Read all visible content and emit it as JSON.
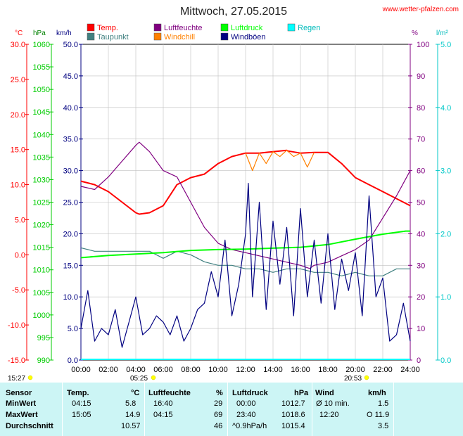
{
  "title": "Mittwoch, 27.05.2015",
  "source": "www.wetter-pfalzen.com",
  "axis_units": {
    "temp": "°C",
    "pressure": "hPa",
    "wind": "km/h",
    "humidity": "%",
    "rain": "l/m²"
  },
  "legend": [
    {
      "label": "Temp.",
      "color": "#ff0000"
    },
    {
      "label": "Taupunkt",
      "color": "#408080"
    },
    {
      "label": "Luftfeuchte",
      "color": "#800080"
    },
    {
      "label": "Windchill",
      "color": "#ff8000"
    },
    {
      "label": "Luftdruck",
      "color": "#00ff00"
    },
    {
      "label": "Windböen",
      "color": "#000080"
    },
    {
      "label": "Regen",
      "color": "#00ffff"
    }
  ],
  "sun": {
    "moonset": "15:27",
    "sunrise": "05:25",
    "sunset": "20:53"
  },
  "chart_data": {
    "type": "line",
    "title": "Mittwoch, 27.05.2015",
    "x_ticks": [
      "00:00",
      "02:00",
      "04:00",
      "06:00",
      "08:00",
      "10:00",
      "12:00",
      "14:00",
      "16:00",
      "18:00",
      "20:00",
      "22:00",
      "24:00"
    ],
    "axes": {
      "temp": {
        "label": "°C",
        "range": [
          -15,
          30
        ],
        "ticks": [
          "30.0",
          "25.0",
          "20.0",
          "15.0",
          "10.0",
          "5.0",
          "0.0",
          "-5.0",
          "-10.0",
          "-15.0"
        ]
      },
      "pressure": {
        "label": "hPa",
        "range": [
          990,
          1060
        ],
        "ticks": [
          "1060",
          "1055",
          "1050",
          "1045",
          "1040",
          "1035",
          "1030",
          "1025",
          "1020",
          "1015",
          "1010",
          "1005",
          "1000",
          "995",
          "990"
        ]
      },
      "wind": {
        "label": "km/h",
        "range": [
          0,
          50
        ],
        "ticks": [
          "50.0",
          "45.0",
          "40.0",
          "35.0",
          "30.0",
          "25.0",
          "20.0",
          "15.0",
          "10.0",
          "5.0",
          "0.0"
        ]
      },
      "humidity": {
        "label": "%",
        "range": [
          0,
          100
        ],
        "ticks": [
          "100",
          "90",
          "80",
          "70",
          "60",
          "50",
          "40",
          "30",
          "20",
          "10",
          "0"
        ]
      },
      "rain": {
        "label": "l/m²",
        "range": [
          0,
          5
        ],
        "ticks": [
          "5.0",
          "4.0",
          "3.0",
          "2.0",
          "1.0",
          "0.0"
        ]
      }
    },
    "series": [
      {
        "name": "Temp.",
        "axis": "temp",
        "color": "#ff0000",
        "x": [
          0,
          1,
          2,
          3,
          4,
          4.25,
          5,
          6,
          7,
          8,
          9,
          10,
          11,
          12,
          13,
          14,
          15,
          15.08,
          16,
          17,
          18,
          19,
          20,
          21,
          22,
          23,
          24
        ],
        "y": [
          10.5,
          10,
          9,
          7.5,
          6,
          5.8,
          6,
          7,
          10,
          11,
          11.5,
          13,
          14,
          14.5,
          14.5,
          14.7,
          14.9,
          14.8,
          14.5,
          14.6,
          14.6,
          13,
          11,
          10,
          9,
          8,
          7
        ]
      },
      {
        "name": "Taupunkt",
        "axis": "temp",
        "color": "#408080",
        "x": [
          0,
          1,
          2,
          3,
          4,
          5,
          6,
          7,
          8,
          9,
          10,
          11,
          12,
          13,
          14,
          15,
          16,
          17,
          18,
          19,
          20,
          21,
          22,
          23,
          24
        ],
        "y": [
          1,
          0.5,
          0.5,
          0.5,
          0.5,
          0.5,
          -0.5,
          0.5,
          0,
          -1,
          -1.5,
          -1.5,
          -2,
          -2,
          -2.5,
          -2,
          -2,
          -2.5,
          -2.5,
          -3,
          -2.5,
          -3,
          -3,
          -2,
          -2
        ]
      },
      {
        "name": "Luftfeuchte",
        "axis": "humidity",
        "color": "#800080",
        "x": [
          0,
          1,
          2,
          3,
          4,
          4.25,
          5,
          6,
          7,
          8,
          9,
          10,
          11,
          12,
          13,
          14,
          15,
          16,
          16.67,
          17,
          18,
          19,
          20,
          21,
          22,
          23,
          24
        ],
        "y": [
          55,
          54,
          58,
          63,
          68,
          69,
          66,
          60,
          58,
          50,
          42,
          37,
          35,
          34,
          33,
          32,
          31,
          30,
          29,
          30,
          31,
          33,
          35,
          38,
          45,
          52,
          60
        ]
      },
      {
        "name": "Windchill",
        "axis": "temp",
        "color": "#ff8000",
        "x": [
          12,
          12.5,
          13,
          13.5,
          14,
          14.5,
          15,
          15.5,
          16,
          16.5,
          17
        ],
        "y": [
          14.5,
          12,
          14.5,
          13,
          14.7,
          14,
          14.9,
          14,
          14.5,
          12.5,
          14.6
        ]
      },
      {
        "name": "Luftdruck",
        "axis": "pressure",
        "color": "#00ff00",
        "x": [
          0,
          0.02,
          2,
          4,
          6,
          8,
          10,
          12,
          14,
          16,
          18,
          20,
          22,
          23.67,
          24
        ],
        "y": [
          1012.7,
          1012.7,
          1013.2,
          1013.5,
          1013.8,
          1014.3,
          1014.5,
          1014.6,
          1014.8,
          1015,
          1015.6,
          1016.8,
          1017.9,
          1018.6,
          1018.6
        ]
      },
      {
        "name": "Windböen",
        "axis": "wind",
        "color": "#000080",
        "x": [
          0,
          0.5,
          1,
          1.5,
          2,
          2.5,
          3,
          3.5,
          4,
          4.5,
          5,
          5.5,
          6,
          6.5,
          7,
          7.5,
          8,
          8.5,
          9,
          9.5,
          10,
          10.5,
          11,
          11.5,
          12,
          12.2,
          12.5,
          13,
          13.5,
          14,
          14.5,
          15,
          15.5,
          16,
          16.5,
          17,
          17.5,
          18,
          18.5,
          19,
          19.5,
          20,
          20.5,
          21,
          21.5,
          22,
          22.5,
          23,
          23.5,
          24
        ],
        "y": [
          5,
          11,
          3,
          5,
          4,
          8,
          2,
          6,
          10,
          4,
          5,
          7,
          6,
          4,
          7,
          3,
          5,
          8,
          9,
          14,
          10,
          19,
          7,
          12,
          20,
          28,
          10,
          25,
          8,
          22,
          12,
          21,
          7,
          24,
          10,
          19,
          9,
          20,
          8,
          16,
          11,
          17,
          7,
          26,
          10,
          13,
          3,
          4,
          9,
          3
        ]
      }
    ]
  },
  "stats": {
    "headers": {
      "sensor": "Sensor",
      "temp": "Temp.",
      "temp_unit": "°C",
      "hum": "Luftfeuchte",
      "hum_unit": "%",
      "press": "Luftdruck",
      "press_unit": "hPa",
      "wind": "Wind",
      "wind_unit": "km/h"
    },
    "min": {
      "label": "MinWert",
      "temp_time": "04:15",
      "temp": "5.8",
      "hum_time": "16:40",
      "hum": "29",
      "press_time": "00:00",
      "press": "1012.7",
      "wind_time": "Ø 10 min.",
      "wind": "1.5"
    },
    "max": {
      "label": "MaxWert",
      "temp_time": "15:05",
      "temp": "14.9",
      "hum_time": "04:15",
      "hum": "69",
      "press_time": "23:40",
      "press": "1018.6",
      "wind_time": "12:20",
      "wind": "O 11.9"
    },
    "avg": {
      "label": "Durchschnitt",
      "temp": "10.57",
      "hum": "46",
      "press_trend": "^0.9hPa/h",
      "press": "1015.4",
      "wind": "3.5"
    }
  }
}
